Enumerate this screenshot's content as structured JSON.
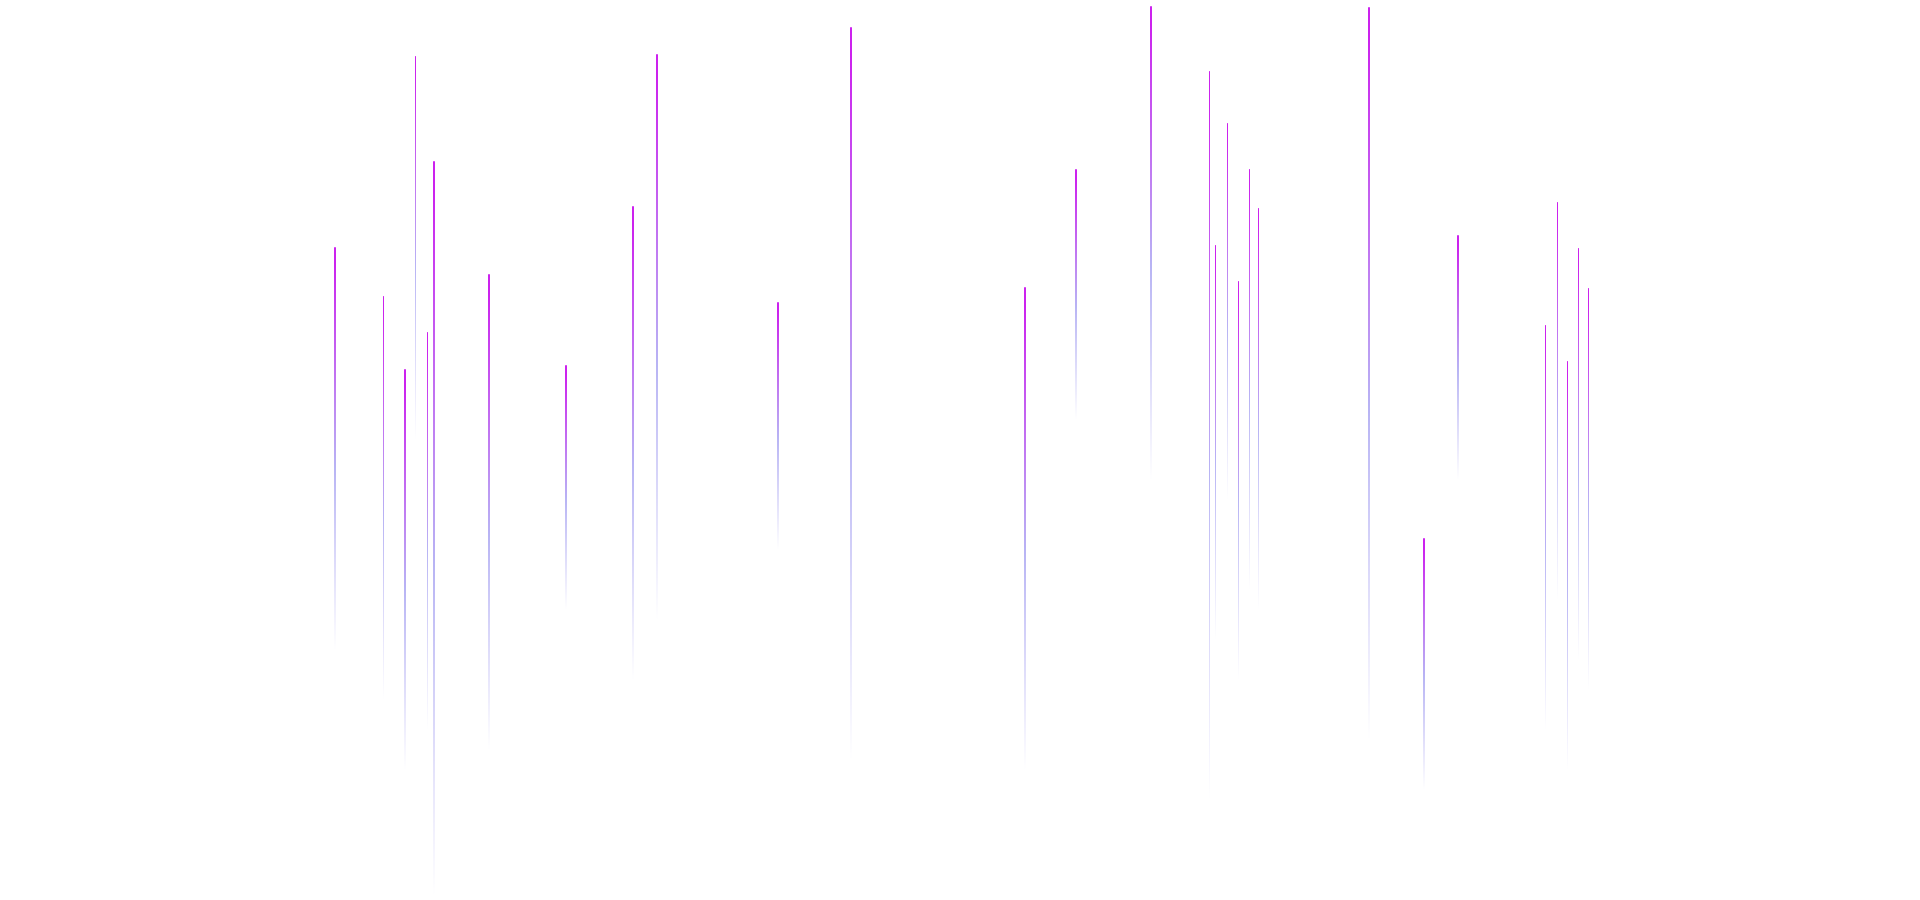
{
  "scene": {
    "colors": {
      "background": "#ffffff",
      "streak_head": "#cc22ee",
      "streak_tail": "#b8b4f4"
    },
    "streak_count": 32
  }
}
